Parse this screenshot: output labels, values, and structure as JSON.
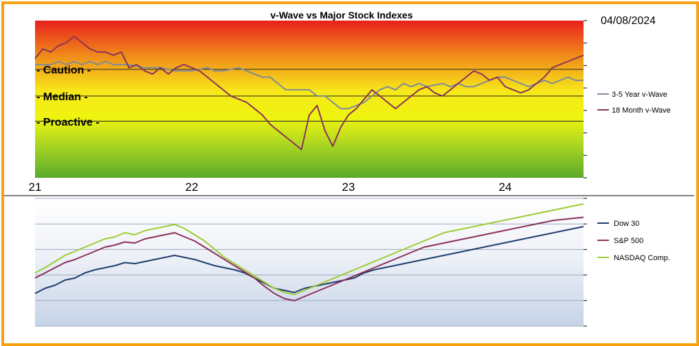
{
  "date_stamp": "04/08/2024",
  "colors": {
    "frame": "#f7a010",
    "wave35": "#7f8a9a",
    "wave18": "#8a3358",
    "dow": "#1f3d6e",
    "sp": "#8a2f5a",
    "nasdaq": "#9ccc30"
  },
  "chart_data": [
    {
      "type": "line",
      "title": "v-Wave vs Major Stock Indexes",
      "x_ticks": [
        "21",
        "22",
        "23",
        "24"
      ],
      "xlim": [
        2021.0,
        2024.5
      ],
      "ylim": [
        0,
        100
      ],
      "grid": false,
      "legend": "right",
      "zones": [
        {
          "label": "- Caution -",
          "value": 69
        },
        {
          "label": "- Median -",
          "value": 52
        },
        {
          "label": "- Proactive -",
          "value": 36
        }
      ],
      "series": [
        {
          "name": "3-5 Year v-Wave",
          "color_key": "wave35",
          "points": [
            [
              2021.0,
              72
            ],
            [
              2021.1,
              72
            ],
            [
              2021.15,
              74
            ],
            [
              2021.2,
              72
            ],
            [
              2021.25,
              74
            ],
            [
              2021.3,
              72
            ],
            [
              2021.35,
              74
            ],
            [
              2021.4,
              72
            ],
            [
              2021.45,
              74
            ],
            [
              2021.5,
              72
            ],
            [
              2021.6,
              72
            ],
            [
              2021.7,
              70
            ],
            [
              2021.8,
              70
            ],
            [
              2021.9,
              68
            ],
            [
              2022.0,
              68
            ],
            [
              2022.1,
              70
            ],
            [
              2022.15,
              68
            ],
            [
              2022.2,
              68
            ],
            [
              2022.3,
              70
            ],
            [
              2022.4,
              66
            ],
            [
              2022.45,
              64
            ],
            [
              2022.5,
              64
            ],
            [
              2022.55,
              60
            ],
            [
              2022.6,
              56
            ],
            [
              2022.65,
              56
            ],
            [
              2022.7,
              56
            ],
            [
              2022.75,
              56
            ],
            [
              2022.8,
              52
            ],
            [
              2022.85,
              52
            ],
            [
              2022.9,
              48
            ],
            [
              2022.95,
              44
            ],
            [
              2023.0,
              44
            ],
            [
              2023.1,
              48
            ],
            [
              2023.15,
              52
            ],
            [
              2023.2,
              56
            ],
            [
              2023.25,
              58
            ],
            [
              2023.3,
              56
            ],
            [
              2023.35,
              60
            ],
            [
              2023.4,
              58
            ],
            [
              2023.45,
              60
            ],
            [
              2023.5,
              58
            ],
            [
              2023.6,
              60
            ],
            [
              2023.65,
              58
            ],
            [
              2023.7,
              60
            ],
            [
              2023.75,
              58
            ],
            [
              2023.8,
              58
            ],
            [
              2023.85,
              60
            ],
            [
              2023.9,
              62
            ],
            [
              2023.95,
              64
            ],
            [
              2024.0,
              64
            ],
            [
              2024.05,
              62
            ],
            [
              2024.1,
              60
            ],
            [
              2024.15,
              58
            ],
            [
              2024.2,
              60
            ],
            [
              2024.25,
              62
            ],
            [
              2024.3,
              60
            ],
            [
              2024.35,
              62
            ],
            [
              2024.4,
              64
            ],
            [
              2024.45,
              62
            ],
            [
              2024.5,
              62
            ]
          ]
        },
        {
          "name": "18 Month v-Wave",
          "color_key": "wave18",
          "points": [
            [
              2021.0,
              76
            ],
            [
              2021.05,
              82
            ],
            [
              2021.1,
              80
            ],
            [
              2021.15,
              84
            ],
            [
              2021.2,
              86
            ],
            [
              2021.25,
              90
            ],
            [
              2021.3,
              86
            ],
            [
              2021.35,
              82
            ],
            [
              2021.4,
              80
            ],
            [
              2021.45,
              80
            ],
            [
              2021.5,
              78
            ],
            [
              2021.55,
              80
            ],
            [
              2021.6,
              70
            ],
            [
              2021.65,
              72
            ],
            [
              2021.7,
              68
            ],
            [
              2021.75,
              66
            ],
            [
              2021.8,
              70
            ],
            [
              2021.85,
              66
            ],
            [
              2021.9,
              70
            ],
            [
              2021.95,
              72
            ],
            [
              2022.0,
              70
            ],
            [
              2022.05,
              68
            ],
            [
              2022.1,
              64
            ],
            [
              2022.15,
              60
            ],
            [
              2022.2,
              56
            ],
            [
              2022.25,
              52
            ],
            [
              2022.3,
              50
            ],
            [
              2022.35,
              48
            ],
            [
              2022.4,
              44
            ],
            [
              2022.45,
              40
            ],
            [
              2022.5,
              34
            ],
            [
              2022.55,
              30
            ],
            [
              2022.6,
              26
            ],
            [
              2022.65,
              22
            ],
            [
              2022.7,
              18
            ],
            [
              2022.75,
              40
            ],
            [
              2022.8,
              46
            ],
            [
              2022.85,
              30
            ],
            [
              2022.9,
              20
            ],
            [
              2022.95,
              32
            ],
            [
              2023.0,
              40
            ],
            [
              2023.05,
              44
            ],
            [
              2023.1,
              50
            ],
            [
              2023.15,
              56
            ],
            [
              2023.2,
              52
            ],
            [
              2023.25,
              48
            ],
            [
              2023.3,
              44
            ],
            [
              2023.35,
              48
            ],
            [
              2023.4,
              52
            ],
            [
              2023.45,
              56
            ],
            [
              2023.5,
              58
            ],
            [
              2023.55,
              54
            ],
            [
              2023.6,
              52
            ],
            [
              2023.65,
              56
            ],
            [
              2023.7,
              60
            ],
            [
              2023.75,
              64
            ],
            [
              2023.8,
              68
            ],
            [
              2023.85,
              66
            ],
            [
              2023.9,
              62
            ],
            [
              2023.95,
              64
            ],
            [
              2024.0,
              58
            ],
            [
              2024.05,
              56
            ],
            [
              2024.1,
              54
            ],
            [
              2024.15,
              56
            ],
            [
              2024.2,
              60
            ],
            [
              2024.25,
              64
            ],
            [
              2024.3,
              70
            ],
            [
              2024.35,
              72
            ],
            [
              2024.4,
              74
            ],
            [
              2024.45,
              76
            ],
            [
              2024.5,
              78
            ]
          ]
        }
      ]
    },
    {
      "type": "line",
      "x_ticks": [
        "21",
        "22",
        "23",
        "24"
      ],
      "xlim": [
        2021.0,
        2024.5
      ],
      "grid": true,
      "legend": "right",
      "series": [
        {
          "name": "Dow 30",
          "color_key": "dow",
          "values": [
            0.25,
            0.3,
            0.33,
            0.38,
            0.4,
            0.45,
            0.48,
            0.5,
            0.52,
            0.55,
            0.54,
            0.56,
            0.58,
            0.6,
            0.62,
            0.6,
            0.58,
            0.55,
            0.52,
            0.5,
            0.48,
            0.45,
            0.4,
            0.35,
            0.3,
            0.28,
            0.26,
            0.3,
            0.32,
            0.34,
            0.36,
            0.38,
            0.4,
            0.45,
            0.48,
            0.5,
            0.52,
            0.54,
            0.56,
            0.58,
            0.6,
            0.62,
            0.64,
            0.66,
            0.68,
            0.7,
            0.72,
            0.74,
            0.76,
            0.78,
            0.8,
            0.82,
            0.84,
            0.86,
            0.88,
            0.9
          ]
        },
        {
          "name": "S&P 500",
          "color_key": "sp",
          "values": [
            0.4,
            0.45,
            0.5,
            0.55,
            0.58,
            0.62,
            0.66,
            0.7,
            0.72,
            0.75,
            0.74,
            0.78,
            0.8,
            0.82,
            0.84,
            0.8,
            0.76,
            0.7,
            0.64,
            0.58,
            0.52,
            0.46,
            0.4,
            0.32,
            0.25,
            0.2,
            0.18,
            0.22,
            0.26,
            0.3,
            0.34,
            0.38,
            0.42,
            0.46,
            0.5,
            0.54,
            0.58,
            0.62,
            0.66,
            0.7,
            0.72,
            0.74,
            0.76,
            0.78,
            0.8,
            0.82,
            0.84,
            0.86,
            0.88,
            0.9,
            0.92,
            0.94,
            0.96,
            0.97,
            0.98,
            0.99
          ]
        },
        {
          "name": "NASDAQ Comp.",
          "color_key": "nasdaq",
          "values": [
            0.45,
            0.5,
            0.56,
            0.62,
            0.66,
            0.7,
            0.74,
            0.78,
            0.8,
            0.84,
            0.82,
            0.86,
            0.88,
            0.9,
            0.92,
            0.88,
            0.82,
            0.76,
            0.68,
            0.6,
            0.54,
            0.48,
            0.42,
            0.36,
            0.3,
            0.26,
            0.24,
            0.28,
            0.32,
            0.36,
            0.4,
            0.44,
            0.48,
            0.52,
            0.56,
            0.6,
            0.64,
            0.68,
            0.72,
            0.76,
            0.8,
            0.84,
            0.86,
            0.88,
            0.9,
            0.92,
            0.94,
            0.96,
            0.98,
            1.0,
            1.02,
            1.04,
            1.06,
            1.08,
            1.1,
            1.12
          ]
        }
      ]
    }
  ]
}
